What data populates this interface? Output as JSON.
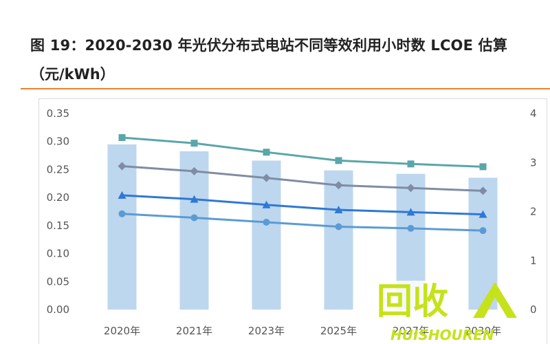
{
  "title": {
    "line1": "图 19：2020-2030 年光伏分布式电站不同等效利用小时数 LCOE 估算",
    "line2": "（元/kWh）"
  },
  "chart_data": {
    "type": "bar",
    "categories": [
      "2020年",
      "2021年",
      "2023年",
      "2025年",
      "2027年",
      "2030年"
    ],
    "y_left": {
      "min": 0,
      "max": 0.35,
      "ticks": [
        "0.00",
        "0.05",
        "0.10",
        "0.15",
        "0.20",
        "0.25",
        "0.30",
        "0.35"
      ]
    },
    "y_right": {
      "min": 0,
      "max": 4,
      "ticks": [
        "0",
        "1",
        "2",
        "3",
        "4"
      ]
    },
    "bars": {
      "axis": "right",
      "color": "#bdd7ee",
      "values": [
        3.37,
        3.23,
        3.04,
        2.84,
        2.77,
        2.69
      ]
    },
    "series": [
      {
        "axis": "left",
        "color": "#5aa6a9",
        "marker": "square",
        "values": [
          0.307,
          0.297,
          0.281,
          0.266,
          0.26,
          0.255
        ]
      },
      {
        "axis": "left",
        "color": "#7f8ca3",
        "marker": "diamond",
        "values": [
          0.256,
          0.247,
          0.235,
          0.222,
          0.217,
          0.212
        ]
      },
      {
        "axis": "left",
        "color": "#2f78d6",
        "marker": "triangle",
        "values": [
          0.204,
          0.197,
          0.187,
          0.178,
          0.174,
          0.17
        ]
      },
      {
        "axis": "left",
        "color": "#5b9bd5",
        "marker": "circle",
        "values": [
          0.171,
          0.164,
          0.156,
          0.148,
          0.145,
          0.141
        ]
      }
    ],
    "grid": false,
    "legend": "none"
  },
  "watermark": {
    "cn": "回收",
    "en": "HUISHOUREN",
    "color": "#c6e21a"
  }
}
